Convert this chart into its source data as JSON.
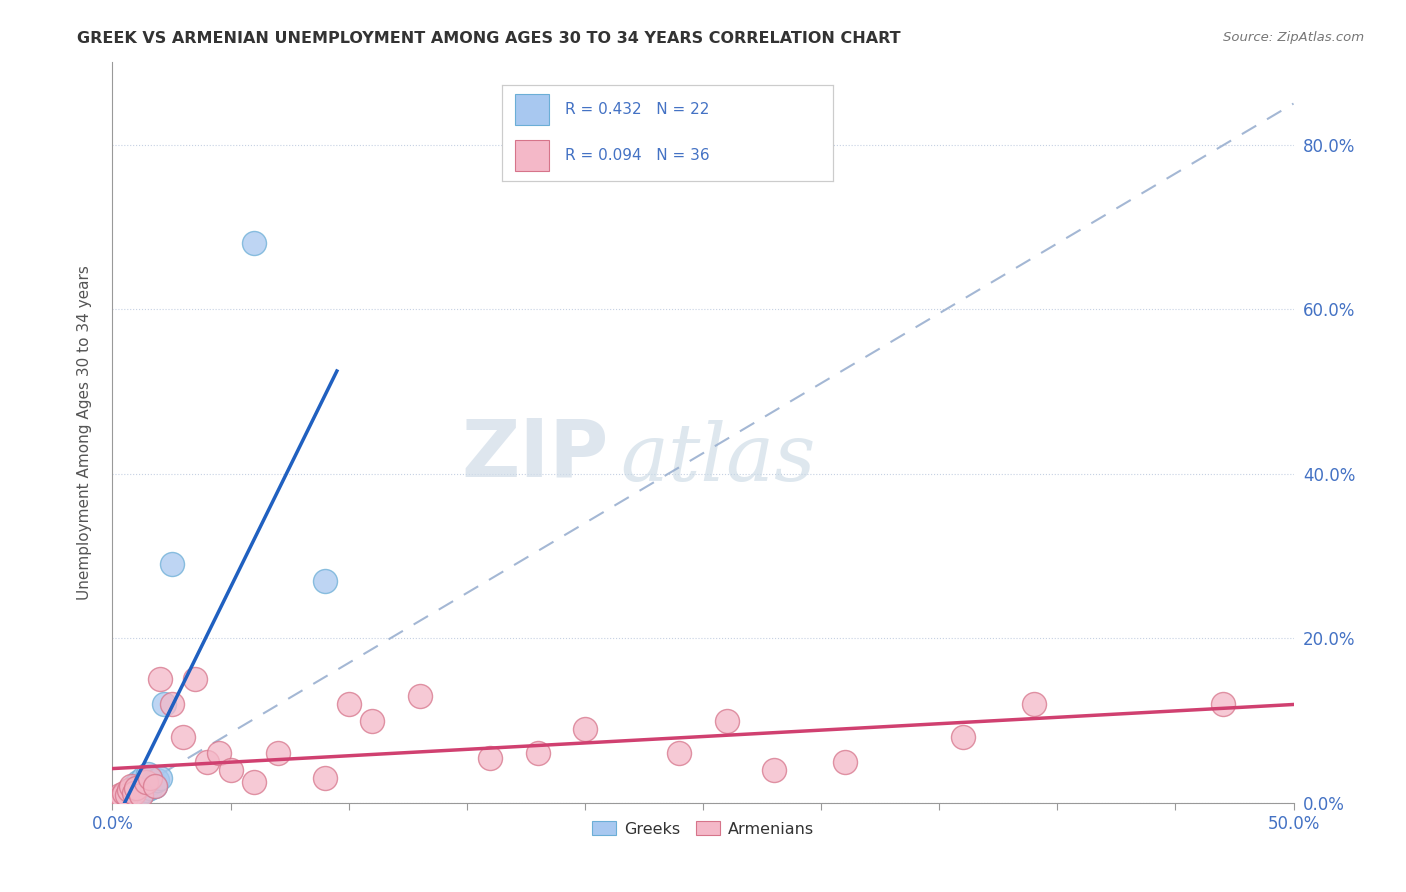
{
  "title": "GREEK VS ARMENIAN UNEMPLOYMENT AMONG AGES 30 TO 34 YEARS CORRELATION CHART",
  "source": "Source: ZipAtlas.com",
  "ylabel": "Unemployment Among Ages 30 to 34 years",
  "xlim": [
    0.0,
    0.5
  ],
  "ylim": [
    0.0,
    0.9
  ],
  "xticks": [
    0.0,
    0.05,
    0.1,
    0.15,
    0.2,
    0.25,
    0.3,
    0.35,
    0.4,
    0.45,
    0.5
  ],
  "xtick_labels_show": [
    0.0,
    0.5
  ],
  "yticks": [
    0.0,
    0.2,
    0.4,
    0.6,
    0.8
  ],
  "greek_color": "#a8c8f0",
  "greek_edge_color": "#6baed6",
  "armenian_color": "#f4b8c8",
  "armenian_edge_color": "#d6748a",
  "greek_line_color": "#2060c0",
  "armenian_line_color": "#d04070",
  "ref_line_color": "#9ab0d0",
  "legend_text_color": "#4472c4",
  "watermark_zip": "ZIP",
  "watermark_atlas": "atlas",
  "tick_color": "#4472c4",
  "greek_x": [
    0.002,
    0.004,
    0.005,
    0.006,
    0.007,
    0.008,
    0.009,
    0.01,
    0.011,
    0.012,
    0.013,
    0.014,
    0.015,
    0.016,
    0.017,
    0.018,
    0.019,
    0.02,
    0.022,
    0.025,
    0.06,
    0.09
  ],
  "greek_y": [
    0.005,
    0.008,
    0.01,
    0.012,
    0.015,
    0.01,
    0.02,
    0.015,
    0.025,
    0.012,
    0.03,
    0.015,
    0.035,
    0.018,
    0.025,
    0.02,
    0.028,
    0.03,
    0.12,
    0.29,
    0.68,
    0.27
  ],
  "armenian_x": [
    0.002,
    0.003,
    0.004,
    0.005,
    0.006,
    0.007,
    0.008,
    0.009,
    0.01,
    0.012,
    0.014,
    0.016,
    0.018,
    0.02,
    0.025,
    0.03,
    0.035,
    0.04,
    0.045,
    0.05,
    0.06,
    0.07,
    0.09,
    0.1,
    0.11,
    0.13,
    0.16,
    0.18,
    0.2,
    0.24,
    0.26,
    0.28,
    0.31,
    0.36,
    0.39,
    0.47
  ],
  "armenian_y": [
    0.005,
    0.01,
    0.008,
    0.012,
    0.01,
    0.015,
    0.02,
    0.012,
    0.018,
    0.01,
    0.025,
    0.03,
    0.02,
    0.15,
    0.12,
    0.08,
    0.15,
    0.05,
    0.06,
    0.04,
    0.025,
    0.06,
    0.03,
    0.12,
    0.1,
    0.13,
    0.055,
    0.06,
    0.09,
    0.06,
    0.1,
    0.04,
    0.05,
    0.08,
    0.12,
    0.12
  ]
}
